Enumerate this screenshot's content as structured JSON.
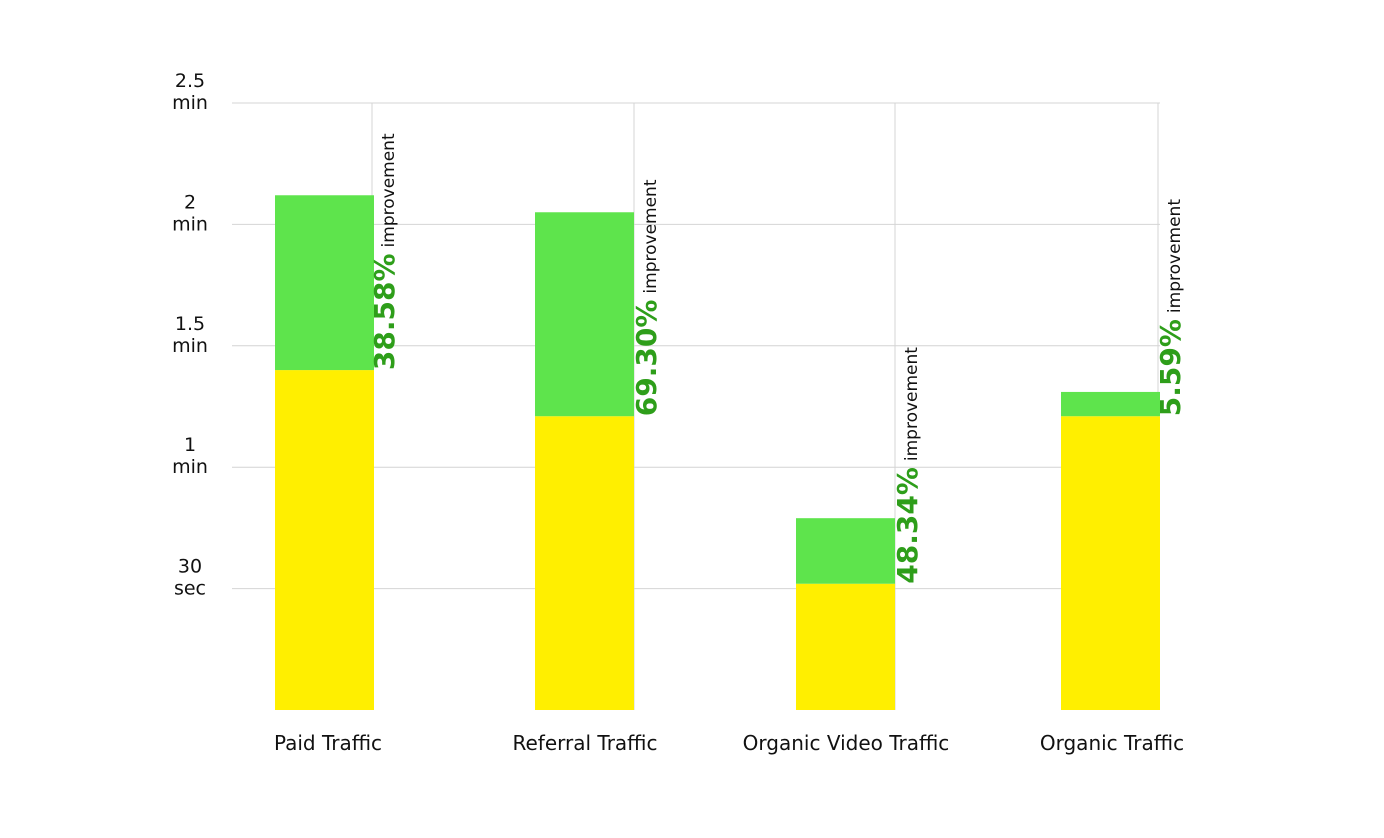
{
  "chart_data": {
    "type": "bar",
    "stacked": true,
    "categories": [
      "Paid Traffic",
      "Referral Traffic",
      "Organic Video Traffic",
      "Organic Traffic"
    ],
    "series": [
      {
        "values": [
          1.4,
          1.21,
          0.52,
          1.21
        ],
        "color": "#FFEF00"
      },
      {
        "values": [
          0.72,
          0.84,
          0.27,
          0.1
        ],
        "color": "#5EE44C"
      }
    ],
    "annotations": [
      {
        "value": "38.58%",
        "suffix": "improvement"
      },
      {
        "value": "69.30%",
        "suffix": "improvement"
      },
      {
        "value": "48.34%",
        "suffix": "improvement"
      },
      {
        "value": "5.59%",
        "suffix": "improvement"
      }
    ],
    "yticks": [
      {
        "value": 0.5,
        "lines": [
          "30",
          "sec"
        ]
      },
      {
        "value": 1,
        "lines": [
          "1",
          "min"
        ]
      },
      {
        "value": 1.5,
        "lines": [
          "1.5",
          "min"
        ]
      },
      {
        "value": 2,
        "lines": [
          "2",
          "min"
        ]
      },
      {
        "value": 2.5,
        "lines": [
          "2.5",
          "min"
        ]
      }
    ],
    "ylim": [
      0,
      2.5
    ],
    "unit": "min",
    "grid": true,
    "annotation_color": "#2E9E1A"
  }
}
